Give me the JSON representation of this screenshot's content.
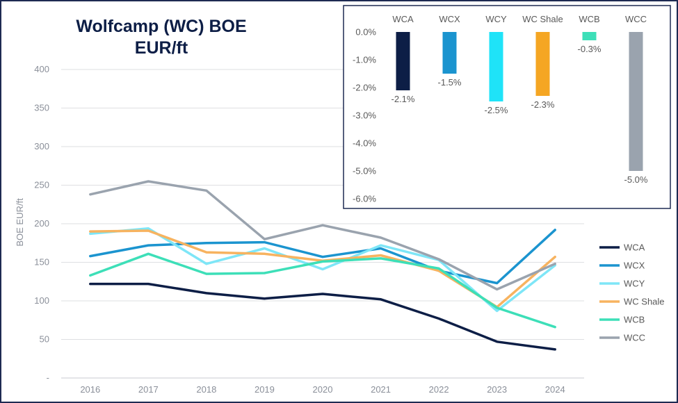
{
  "chart_data": [
    {
      "type": "line",
      "title": "Wolfcamp (WC) BOE",
      "subtitle": "EUR/ft",
      "xlabel": "",
      "ylabel": "BOE EUR/ft",
      "categories": [
        "2016",
        "2017",
        "2018",
        "2019",
        "2020",
        "2021",
        "2022",
        "2023",
        "2024"
      ],
      "ylim": [
        0,
        400
      ],
      "yticks": [
        0,
        50,
        100,
        150,
        200,
        250,
        300,
        350,
        400
      ],
      "ytick_labels": [
        "-",
        "50",
        "100",
        "150",
        "200",
        "250",
        "300",
        "350",
        "400"
      ],
      "grid": true,
      "legend_position": "right",
      "series": [
        {
          "name": "WCA",
          "color": "#0d1e46",
          "values": [
            122,
            122,
            110,
            103,
            109,
            102,
            77,
            47,
            37
          ]
        },
        {
          "name": "WCX",
          "color": "#1b94cf",
          "values": [
            158,
            172,
            175,
            176,
            157,
            168,
            139,
            123,
            192
          ]
        },
        {
          "name": "WCY",
          "color": "#7ee6f7",
          "values": [
            187,
            194,
            148,
            168,
            141,
            172,
            153,
            87,
            146
          ]
        },
        {
          "name": "WC Shale",
          "color": "#f7b360",
          "values": [
            190,
            191,
            163,
            161,
            152,
            159,
            139,
            92,
            157
          ]
        },
        {
          "name": "WCB",
          "color": "#3ddfb8",
          "values": [
            133,
            161,
            135,
            136,
            151,
            155,
            142,
            91,
            66
          ]
        },
        {
          "name": "WCC",
          "color": "#9aa3ae",
          "values": [
            238,
            255,
            243,
            180,
            198,
            182,
            154,
            115,
            148
          ]
        }
      ]
    },
    {
      "type": "bar",
      "title": "",
      "categories": [
        "WCA",
        "WCX",
        "WCY",
        "WC Shale",
        "WCB",
        "WCC"
      ],
      "values": [
        -2.1,
        -1.5,
        -2.5,
        -2.3,
        -0.3,
        -5.0
      ],
      "value_labels": [
        "-2.1%",
        "-1.5%",
        "-2.5%",
        "-2.3%",
        "-0.3%",
        "-5.0%"
      ],
      "colors": [
        "#0d1e46",
        "#1b94cf",
        "#1fe3f8",
        "#f5a623",
        "#3ddfb8",
        "#9aa3ae"
      ],
      "ylim": [
        -6.0,
        0.0
      ],
      "yticks": [
        0,
        -1,
        -2,
        -3,
        -4,
        -5,
        -6
      ],
      "ytick_labels": [
        "0.0%",
        "-1.0%",
        "-2.0%",
        "-3.0%",
        "-4.0%",
        "-5.0%",
        "-6.0%"
      ],
      "legend_position": "none"
    }
  ]
}
